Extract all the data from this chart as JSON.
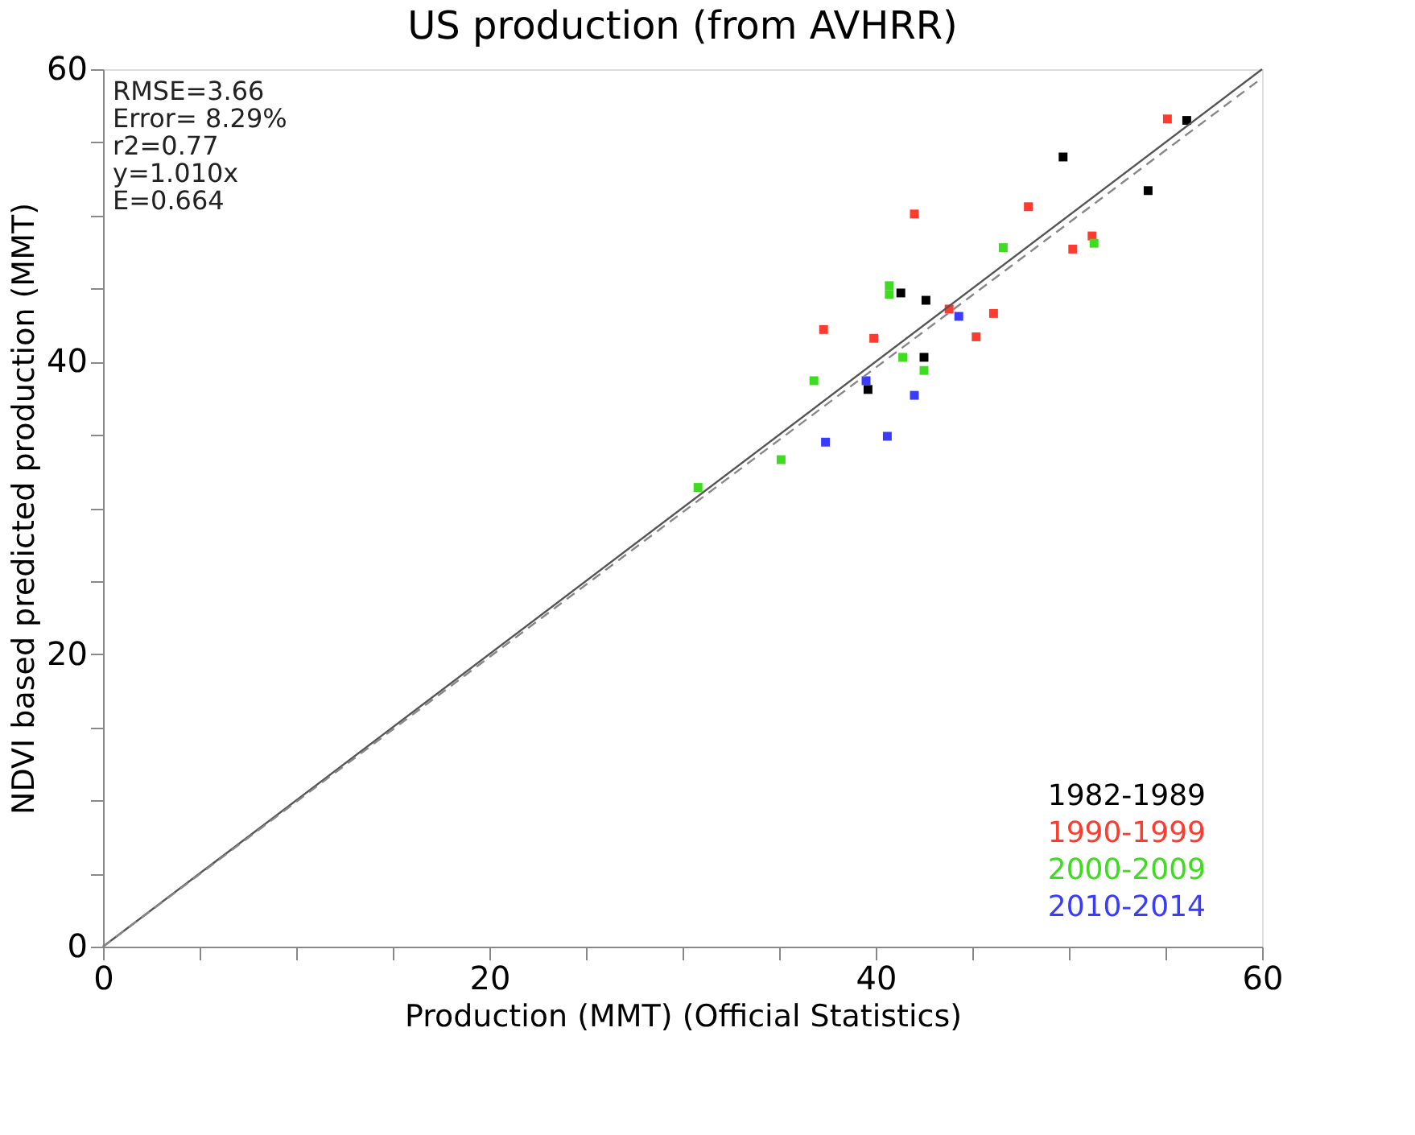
{
  "chart_data": {
    "type": "scatter",
    "title": "US production (from AVHRR)",
    "xlabel": "Production (MMT) (Official Statistics)",
    "ylabel": "NDVI based predicted production (MMT)",
    "xlim": [
      0,
      60
    ],
    "ylim": [
      0,
      60
    ],
    "xticks": [
      0,
      {
        "value": 5,
        "label": null
      },
      {
        "value": 10,
        "label": null
      },
      {
        "value": 15,
        "label": null
      },
      20,
      {
        "value": 25,
        "label": null
      },
      {
        "value": 30,
        "label": null
      },
      {
        "value": 35,
        "label": null
      },
      40,
      {
        "value": 45,
        "label": null
      },
      {
        "value": 50,
        "label": null
      },
      {
        "value": 55,
        "label": null
      },
      60
    ],
    "yticks": [
      0,
      {
        "value": 5,
        "label": null
      },
      {
        "value": 10,
        "label": null
      },
      {
        "value": 15,
        "label": null
      },
      20,
      {
        "value": 25,
        "label": null
      },
      {
        "value": 30,
        "label": null
      },
      {
        "value": 35,
        "label": null
      },
      40,
      {
        "value": 45,
        "label": null
      },
      {
        "value": 50,
        "label": null
      },
      {
        "value": 55,
        "label": null
      },
      60
    ],
    "grid": false,
    "marker": "square",
    "legend": "bottom right",
    "annotations": [
      "RMSE=3.66",
      "Error= 8.29%",
      "r2=0.77",
      "y=1.010x",
      "E=0.664"
    ],
    "series": [
      {
        "name": "1982-1989",
        "color": "#000000",
        "x": [
          56.1,
          49.7,
          54.1,
          41.3,
          42.6,
          42.5,
          39.6
        ],
        "values": [
          56.5,
          54.0,
          51.7,
          44.7,
          44.2,
          40.3,
          38.1
        ]
      },
      {
        "name": "1990-1999",
        "color": "#ff3b2f",
        "x": [
          55.1,
          42.0,
          47.9,
          51.2,
          50.2,
          43.8,
          46.1,
          45.2,
          37.3,
          39.9
        ],
        "values": [
          56.6,
          50.1,
          50.6,
          48.6,
          47.7,
          43.6,
          43.3,
          41.7,
          42.2,
          41.6
        ]
      },
      {
        "name": "2000-2009",
        "color": "#3ddc1f",
        "x": [
          46.6,
          51.3,
          40.7,
          40.7,
          41.4,
          42.5,
          36.8,
          35.1,
          30.8
        ],
        "values": [
          47.8,
          48.1,
          45.2,
          44.6,
          40.3,
          39.4,
          38.7,
          33.3,
          31.4
        ]
      },
      {
        "name": "2010-2014",
        "color": "#3b3bff",
        "x": [
          44.3,
          39.5,
          42.0,
          37.4,
          40.6
        ],
        "values": [
          43.1,
          38.7,
          37.7,
          34.5,
          34.9
        ]
      },
      {
        "type": "line",
        "color": "#555555",
        "line_style": "solid",
        "marker": "none",
        "x": [
          0,
          60
        ],
        "values": [
          0,
          60
        ]
      },
      {
        "type": "line",
        "color": "#888888",
        "line_style": "dashed",
        "marker": "none",
        "x": [
          0,
          60
        ],
        "values": [
          0,
          59.4
        ]
      }
    ]
  }
}
